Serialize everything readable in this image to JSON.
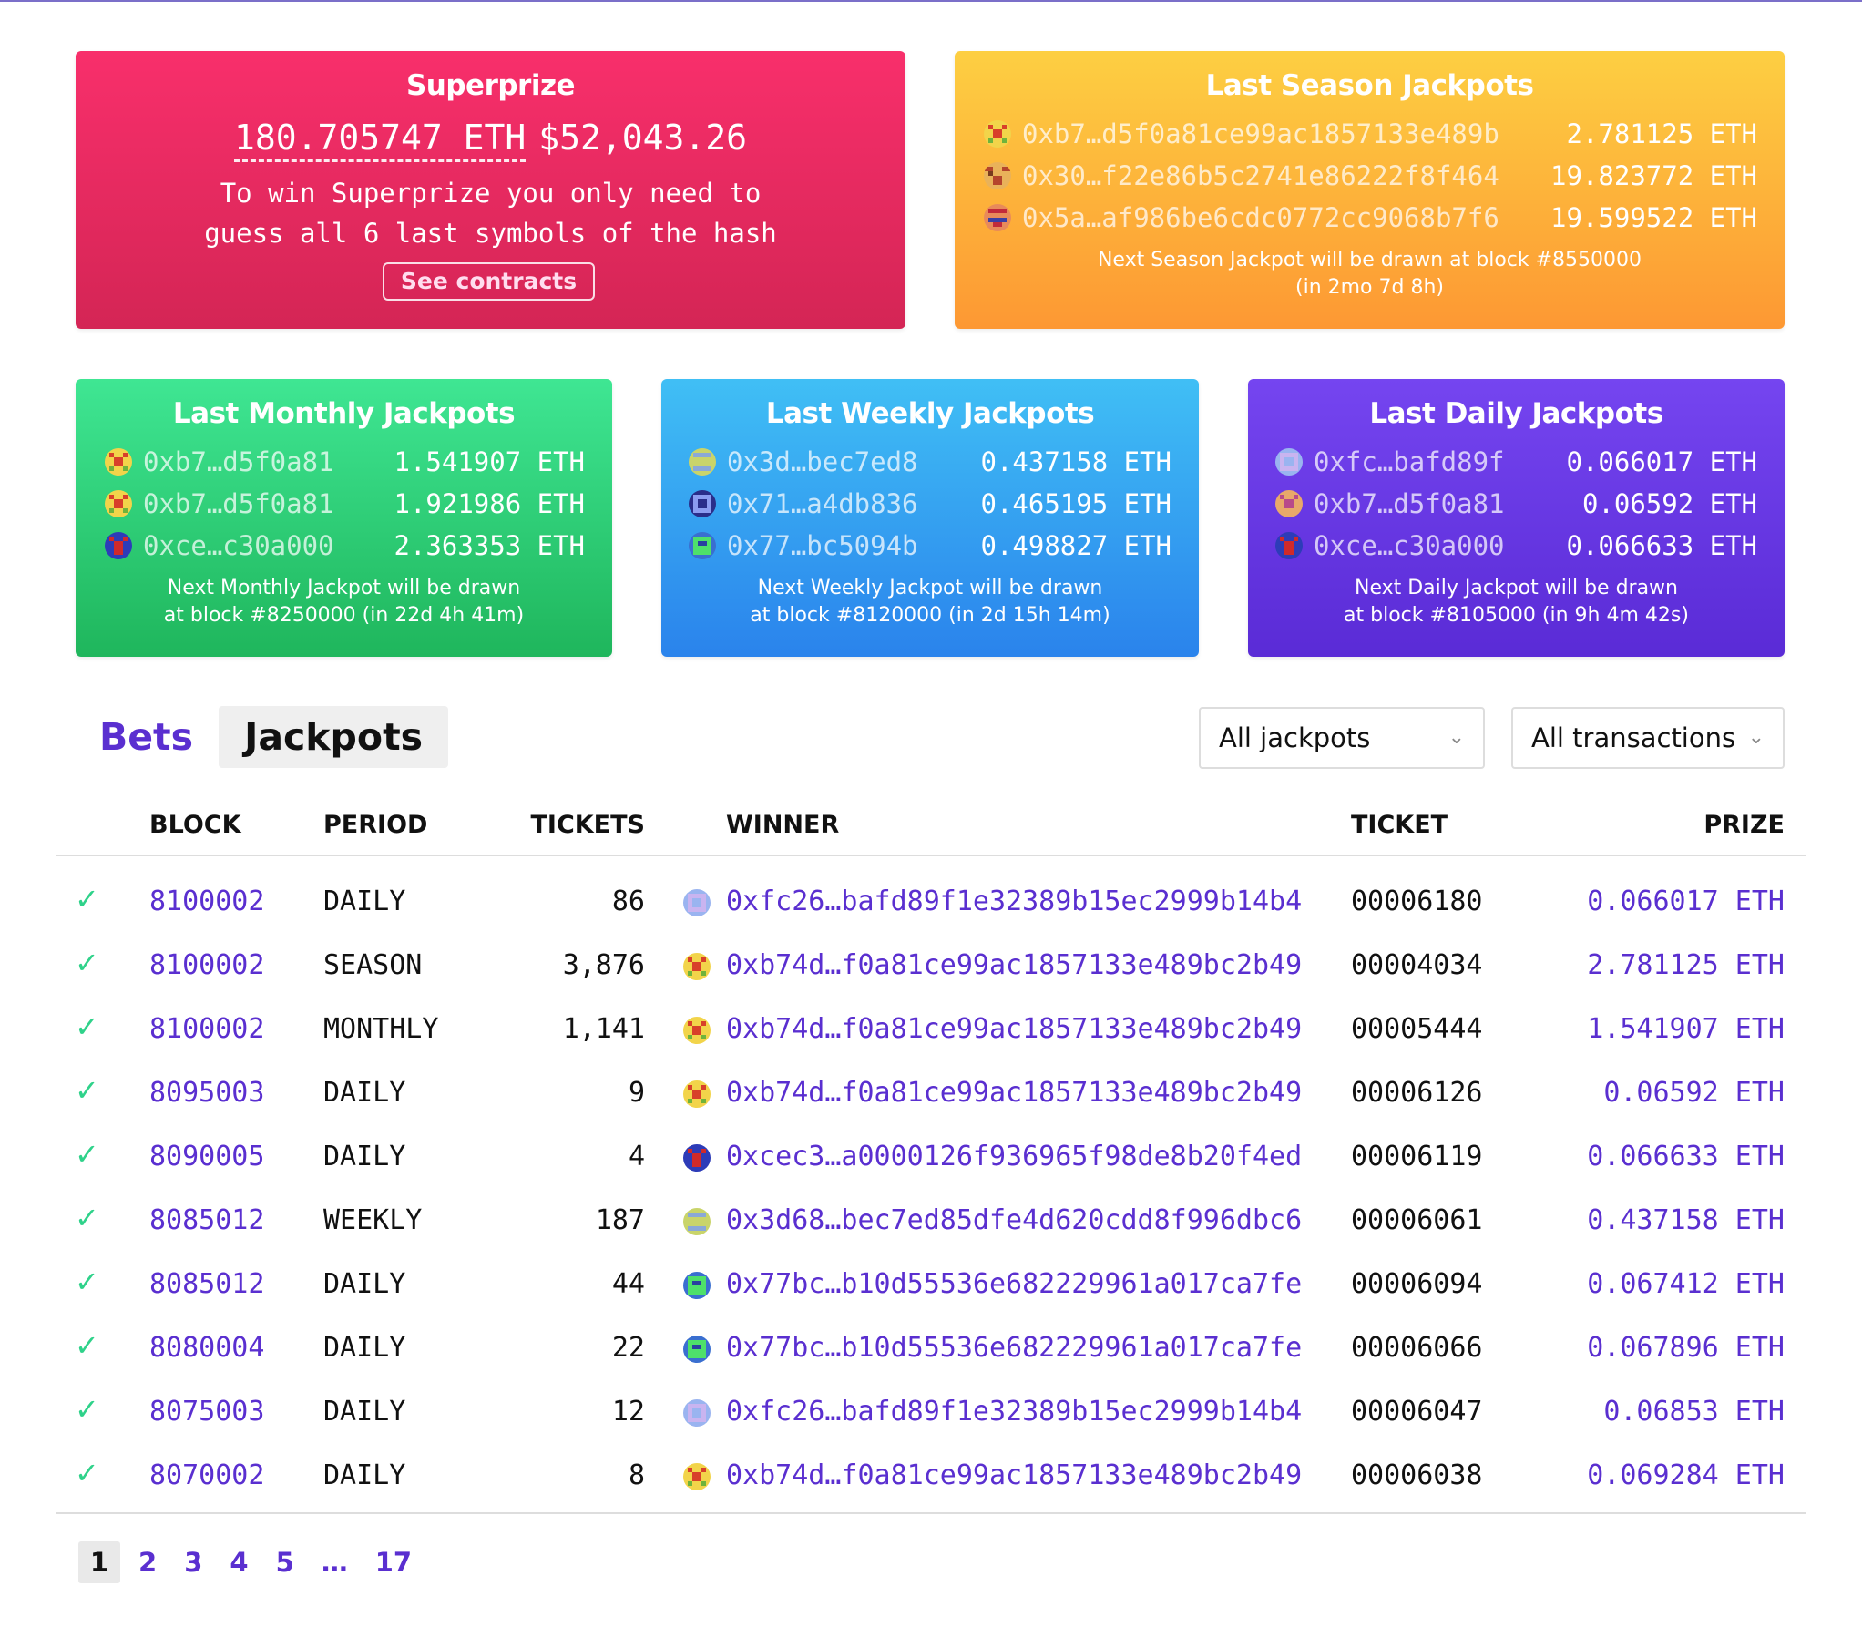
{
  "superprize": {
    "title": "Superprize",
    "amount_eth": "180.705747 ETH",
    "amount_usd": "$52,043.26",
    "desc_line1": "To win Superprize you only need to",
    "desc_line2": "guess all 6 last symbols of the hash",
    "button": "See contracts"
  },
  "season": {
    "title": "Last Season Jackpots",
    "rows": [
      {
        "address": "0xb7…d5f0a81ce99ac1857133e489b",
        "amount": "2.781125 ETH",
        "avatar": "yellow-red-checker-avatar"
      },
      {
        "address": "0x30…f22e86b5c2741e86222f8f464",
        "amount": "19.823772 ETH",
        "avatar": "orange-brown-checker-avatar"
      },
      {
        "address": "0x5a…af986be6cdc0772cc9068b7f6",
        "amount": "19.599522 ETH",
        "avatar": "red-blue-checker-avatar"
      }
    ],
    "note_line1": "Next Season Jackpot will be drawn at block #8550000",
    "note_line2": "(in 2mo 7d 8h)"
  },
  "monthly": {
    "title": "Last Monthly Jackpots",
    "rows": [
      {
        "address": "0xb7…d5f0a81",
        "amount": "1.541907 ETH"
      },
      {
        "address": "0xb7…d5f0a81",
        "amount": "1.921986 ETH"
      },
      {
        "address": "0xce…c30a000",
        "amount": "2.363353 ETH"
      }
    ],
    "note_line1": "Next Monthly Jackpot will be drawn",
    "note_line2": "at block #8250000 (in 22d 4h 41m)"
  },
  "weekly": {
    "title": "Last Weekly Jackpots",
    "rows": [
      {
        "address": "0x3d…bec7ed8",
        "amount": "0.437158 ETH"
      },
      {
        "address": "0x71…a4db836",
        "amount": "0.465195 ETH"
      },
      {
        "address": "0x77…bc5094b",
        "amount": "0.498827 ETH"
      }
    ],
    "note_line1": "Next Weekly Jackpot will be drawn",
    "note_line2": "at block #8120000 (in 2d 15h 14m)"
  },
  "daily": {
    "title": "Last Daily Jackpots",
    "rows": [
      {
        "address": "0xfc…bafd89f",
        "amount": "0.066017 ETH"
      },
      {
        "address": "0xb7…d5f0a81",
        "amount": "0.06592 ETH"
      },
      {
        "address": "0xce…c30a000",
        "amount": "0.066633 ETH"
      }
    ],
    "note_line1": "Next Daily Jackpot will be drawn",
    "note_line2": "at block #8105000 (in 9h 4m 42s)"
  },
  "tabs": {
    "bets": "Bets",
    "jackpots": "Jackpots"
  },
  "filters": {
    "jackpots": "All jackpots",
    "transactions": "All transactions"
  },
  "table": {
    "headers": {
      "block": "BLOCK",
      "period": "PERIOD",
      "tickets": "TICKETS",
      "winner": "WINNER",
      "ticket": "TICKET",
      "prize": "PRIZE"
    },
    "rows": [
      {
        "block": "8100002",
        "period": "DAILY",
        "tickets": "86",
        "winner": "0xfc26…bafd89f1e32389b15ec2999b14b4",
        "ticket": "00006180",
        "prize": "0.066017 ETH",
        "avatar": "lilac"
      },
      {
        "block": "8100002",
        "period": "SEASON",
        "tickets": "3,876",
        "winner": "0xb74d…f0a81ce99ac1857133e489bc2b49",
        "ticket": "00004034",
        "prize": "2.781125 ETH",
        "avatar": "yellowred"
      },
      {
        "block": "8100002",
        "period": "MONTHLY",
        "tickets": "1,141",
        "winner": "0xb74d…f0a81ce99ac1857133e489bc2b49",
        "ticket": "00005444",
        "prize": "1.541907 ETH",
        "avatar": "yellowred"
      },
      {
        "block": "8095003",
        "period": "DAILY",
        "tickets": "9",
        "winner": "0xb74d…f0a81ce99ac1857133e489bc2b49",
        "ticket": "00006126",
        "prize": "0.06592 ETH",
        "avatar": "yellowred"
      },
      {
        "block": "8090005",
        "period": "DAILY",
        "tickets": "4",
        "winner": "0xcec3…a0000126f936965f98de8b20f4ed",
        "ticket": "00006119",
        "prize": "0.066633 ETH",
        "avatar": "redblue"
      },
      {
        "block": "8085012",
        "period": "WEEKLY",
        "tickets": "187",
        "winner": "0x3d68…bec7ed85dfe4d620cdd8f996dbc6",
        "ticket": "00006061",
        "prize": "0.437158 ETH",
        "avatar": "yellowblue"
      },
      {
        "block": "8085012",
        "period": "DAILY",
        "tickets": "44",
        "winner": "0x77bc…b10d55536e682229961a017ca7fe",
        "ticket": "00006094",
        "prize": "0.067412 ETH",
        "avatar": "greenblue"
      },
      {
        "block": "8080004",
        "period": "DAILY",
        "tickets": "22",
        "winner": "0x77bc…b10d55536e682229961a017ca7fe",
        "ticket": "00006066",
        "prize": "0.067896 ETH",
        "avatar": "greenblue"
      },
      {
        "block": "8075003",
        "period": "DAILY",
        "tickets": "12",
        "winner": "0xfc26…bafd89f1e32389b15ec2999b14b4",
        "ticket": "00006047",
        "prize": "0.06853 ETH",
        "avatar": "lilac"
      },
      {
        "block": "8070002",
        "period": "DAILY",
        "tickets": "8",
        "winner": "0xb74d…f0a81ce99ac1857133e489bc2b49",
        "ticket": "00006038",
        "prize": "0.069284 ETH",
        "avatar": "yellowred"
      }
    ]
  },
  "pagination": {
    "pages": [
      "1",
      "2",
      "3",
      "4",
      "5",
      "…",
      "17"
    ],
    "current": "1"
  }
}
